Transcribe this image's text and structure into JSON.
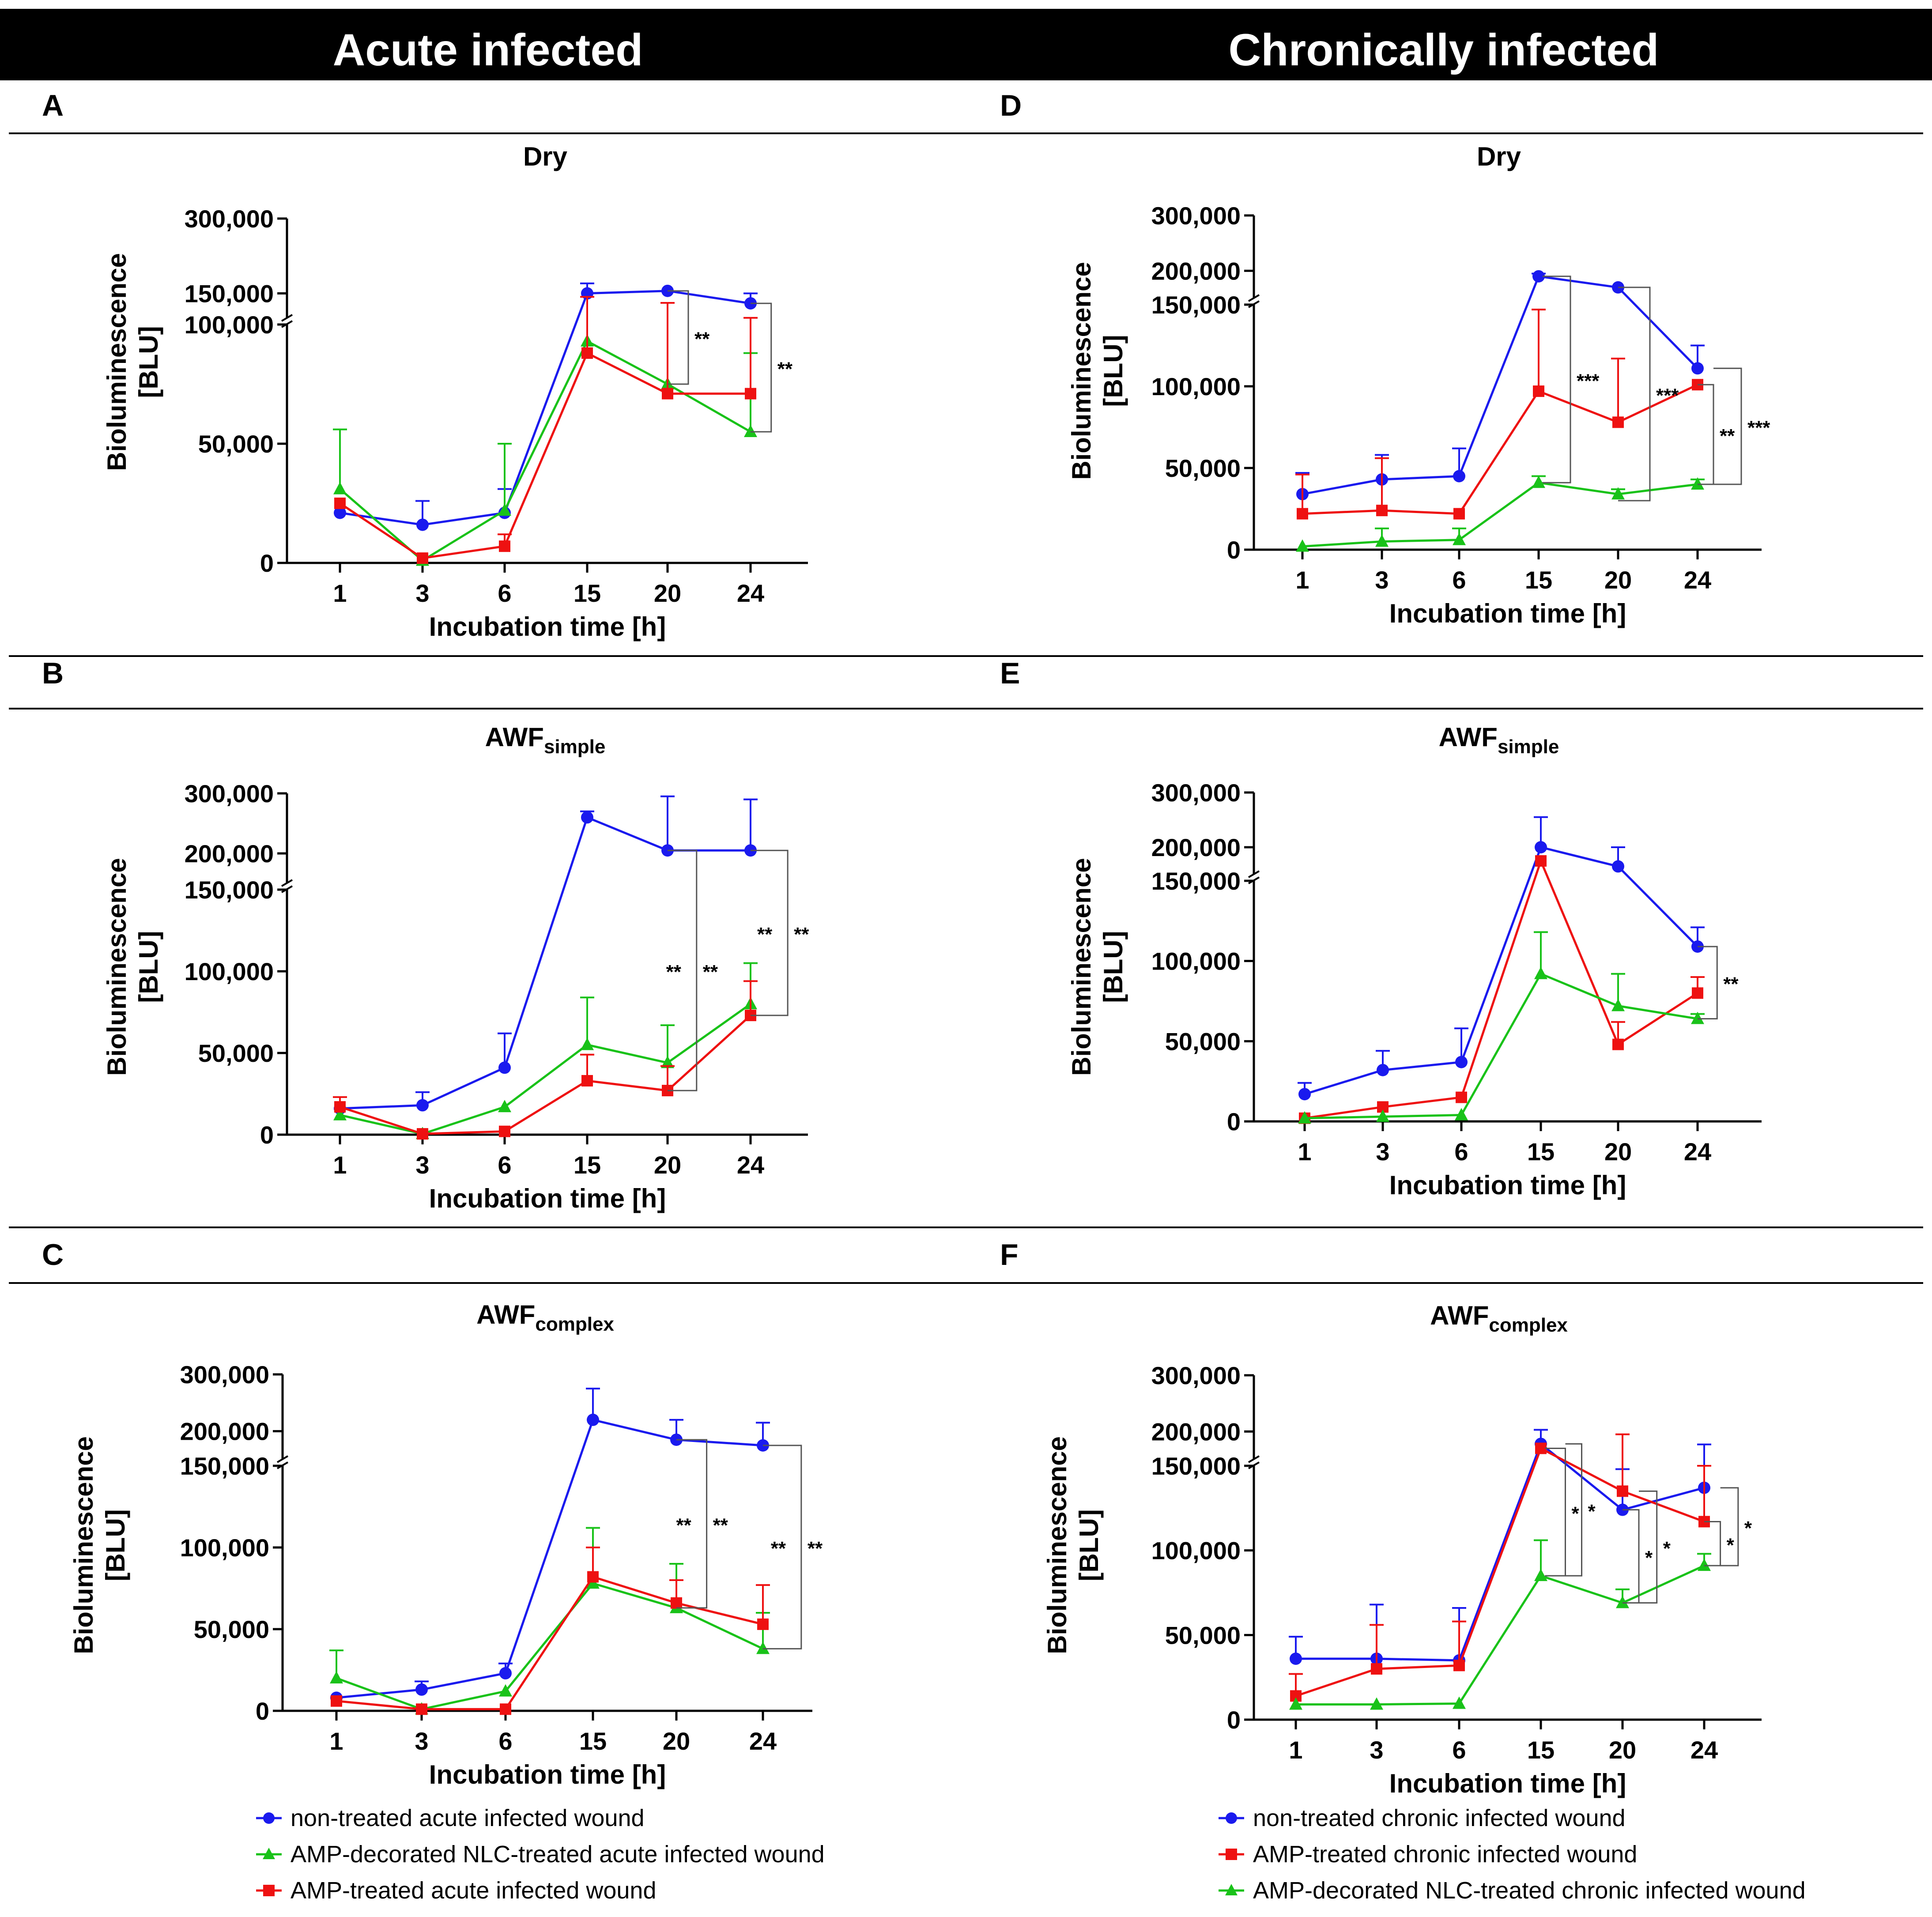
{
  "header": {
    "left_title": "Acute infected",
    "right_title": "Chronically infected",
    "bar_color": "#000000",
    "text_color": "#ffffff"
  },
  "axis_labels": {
    "xlabel": "Incubation time [h]",
    "ylabel_line1": "Bioluminescence",
    "ylabel_line2": "[BLU]"
  },
  "colors": {
    "blue": "#1a1aee",
    "green": "#19c219",
    "red": "#ee1111"
  },
  "legend_acute": [
    {
      "label": "non-treated acute infected wound",
      "color": "#1a1aee",
      "marker": "circle"
    },
    {
      "label": "AMP-decorated NLC-treated acute infected wound",
      "color": "#19c219",
      "marker": "triangle"
    },
    {
      "label": "AMP-treated acute infected wound",
      "color": "#ee1111",
      "marker": "square"
    }
  ],
  "legend_chronic": [
    {
      "label": "non-treated chronic infected wound",
      "color": "#1a1aee",
      "marker": "circle"
    },
    {
      "label": "AMP-treated chronic infected wound",
      "color": "#ee1111",
      "marker": "square"
    },
    {
      "label": "AMP-decorated NLC-treated chronic infected wound",
      "color": "#19c219",
      "marker": "triangle"
    }
  ],
  "chart_data": [
    {
      "id": "A",
      "type": "line",
      "title": "Dry",
      "title_sub": "",
      "categories": [
        "1",
        "3",
        "6",
        "15",
        "20",
        "24"
      ],
      "xlabel": "Incubation time [h]",
      "ylabel": "Bioluminescence [BLU]",
      "axis_break": {
        "lower_range": [
          0,
          100000
        ],
        "upper_range": [
          100000,
          300000
        ]
      },
      "yticks_lower": [
        {
          "v": 0,
          "l": "0"
        },
        {
          "v": 50000,
          "l": "50,000"
        },
        {
          "v": 100000,
          "l": "100,000"
        }
      ],
      "yticks_upper": [
        {
          "v": 150000,
          "l": "150,000"
        },
        {
          "v": 300000,
          "l": "300,000"
        }
      ],
      "series": [
        {
          "name": "non-treated acute infected wound",
          "color": "#1a1aee",
          "marker": "circle",
          "values": [
            21000,
            16000,
            21000,
            150000,
            155000,
            130000
          ],
          "err": [
            0,
            10000,
            10000,
            20000,
            0,
            20000
          ]
        },
        {
          "name": "AMP-decorated NLC-treated acute infected wound",
          "color": "#19c219",
          "marker": "triangle",
          "values": [
            31000,
            1000,
            22000,
            93000,
            75000,
            55000
          ],
          "err": [
            25000,
            0,
            28000,
            0,
            0,
            33000
          ]
        },
        {
          "name": "AMP-treated acute infected wound",
          "color": "#ee1111",
          "marker": "square",
          "values": [
            25000,
            2000,
            7000,
            88000,
            71000,
            71000
          ],
          "err": [
            0,
            0,
            5000,
            55000,
            60000,
            30000
          ]
        }
      ],
      "significance": [
        {
          "x1": 4.0,
          "x2": 4.25,
          "y_top": 155000,
          "y_bot": 75000,
          "label": "**"
        },
        {
          "x1": 5.0,
          "x2": 5.25,
          "y_top": 130000,
          "y_bot": 55000,
          "label": "**"
        }
      ]
    },
    {
      "id": "B",
      "type": "line",
      "title": "AWF",
      "title_sub": "simple",
      "categories": [
        "1",
        "3",
        "6",
        "15",
        "20",
        "24"
      ],
      "xlabel": "Incubation time [h]",
      "ylabel": "Bioluminescence [BLU]",
      "axis_break": {
        "lower_range": [
          0,
          150000
        ],
        "upper_range": [
          150000,
          300000
        ]
      },
      "yticks_lower": [
        {
          "v": 0,
          "l": "0"
        },
        {
          "v": 50000,
          "l": "50,000"
        },
        {
          "v": 100000,
          "l": "100,000"
        },
        {
          "v": 150000,
          "l": "150,000"
        }
      ],
      "yticks_upper": [
        {
          "v": 200000,
          "l": "200,000"
        },
        {
          "v": 300000,
          "l": "300,000"
        }
      ],
      "series": [
        {
          "name": "non-treated acute infected wound",
          "color": "#1a1aee",
          "marker": "circle",
          "values": [
            16000,
            18000,
            41000,
            260000,
            205000,
            205000
          ],
          "err": [
            0,
            8000,
            21000,
            10000,
            90000,
            85000
          ]
        },
        {
          "name": "AMP-decorated NLC-treated acute infected wound",
          "color": "#19c219",
          "marker": "triangle",
          "values": [
            12000,
            500,
            17000,
            55000,
            44000,
            80000
          ],
          "err": [
            0,
            0,
            0,
            29000,
            23000,
            25000
          ]
        },
        {
          "name": "AMP-treated acute infected wound",
          "color": "#ee1111",
          "marker": "square",
          "values": [
            17000,
            500,
            2000,
            33000,
            27000,
            73000
          ],
          "err": [
            6000,
            0,
            0,
            16000,
            15000,
            21000
          ]
        }
      ],
      "significance": [
        {
          "x1": 4.0,
          "x2": 4.35,
          "y_top": 205000,
          "y_bot": 27000,
          "label": "**",
          "label2": "**"
        },
        {
          "x1": 5.0,
          "x2": 5.45,
          "y_top": 205000,
          "y_bot": 73000,
          "label": "**",
          "label2": "**"
        }
      ]
    },
    {
      "id": "C",
      "type": "line",
      "title": "AWF",
      "title_sub": "complex",
      "categories": [
        "1",
        "3",
        "6",
        "15",
        "20",
        "24"
      ],
      "xlabel": "Incubation time [h]",
      "ylabel": "Bioluminescence [BLU]",
      "axis_break": {
        "lower_range": [
          0,
          150000
        ],
        "upper_range": [
          150000,
          300000
        ]
      },
      "yticks_lower": [
        {
          "v": 0,
          "l": "0"
        },
        {
          "v": 50000,
          "l": "50,000"
        },
        {
          "v": 100000,
          "l": "100,000"
        },
        {
          "v": 150000,
          "l": "150,000"
        }
      ],
      "yticks_upper": [
        {
          "v": 200000,
          "l": "200,000"
        },
        {
          "v": 300000,
          "l": "300,000"
        }
      ],
      "series": [
        {
          "name": "non-treated acute infected wound",
          "color": "#1a1aee",
          "marker": "circle",
          "values": [
            8000,
            13000,
            23000,
            220000,
            185000,
            175000
          ],
          "err": [
            0,
            5000,
            6000,
            55000,
            35000,
            40000
          ]
        },
        {
          "name": "AMP-decorated NLC-treated acute infected wound",
          "color": "#19c219",
          "marker": "triangle",
          "values": [
            20000,
            1000,
            12000,
            78000,
            63000,
            38000
          ],
          "err": [
            17000,
            0,
            0,
            34000,
            27000,
            22000
          ]
        },
        {
          "name": "AMP-treated acute infected wound",
          "color": "#ee1111",
          "marker": "square",
          "values": [
            6000,
            1000,
            1000,
            82000,
            66000,
            53000
          ],
          "err": [
            0,
            0,
            0,
            18000,
            14000,
            24000
          ]
        }
      ],
      "significance": [
        {
          "x1": 4.0,
          "x2": 4.35,
          "y_top": 185000,
          "y_bot": 63000,
          "label": "**",
          "label2": "**"
        },
        {
          "x1": 5.0,
          "x2": 5.45,
          "y_top": 175000,
          "y_bot": 38000,
          "label": "**",
          "label2": "**"
        }
      ]
    },
    {
      "id": "D",
      "type": "line",
      "title": "Dry",
      "title_sub": "",
      "categories": [
        "1",
        "3",
        "6",
        "15",
        "20",
        "24"
      ],
      "xlabel": "Incubation time [h]",
      "ylabel": "Bioluminescence [BLU]",
      "axis_break": {
        "lower_range": [
          0,
          150000
        ],
        "upper_range": [
          150000,
          300000
        ]
      },
      "yticks_lower": [
        {
          "v": 0,
          "l": "0"
        },
        {
          "v": 50000,
          "l": "50,000"
        },
        {
          "v": 100000,
          "l": "100,000"
        },
        {
          "v": 150000,
          "l": "150,000"
        }
      ],
      "yticks_upper": [
        {
          "v": 200000,
          "l": "200,000"
        },
        {
          "v": 300000,
          "l": "300,000"
        }
      ],
      "series": [
        {
          "name": "non-treated chronic infected wound",
          "color": "#1a1aee",
          "marker": "circle",
          "values": [
            34000,
            43000,
            45000,
            190000,
            170000,
            111000
          ],
          "err": [
            13000,
            15000,
            17000,
            5000,
            0,
            14000
          ]
        },
        {
          "name": "AMP-treated chronic infected wound",
          "color": "#ee1111",
          "marker": "square",
          "values": [
            22000,
            24000,
            22000,
            97000,
            78000,
            101000
          ],
          "err": [
            24000,
            32000,
            0,
            50000,
            39000,
            0
          ]
        },
        {
          "name": "AMP-decorated NLC-treated chronic infected wound",
          "color": "#19c219",
          "marker": "triangle",
          "values": [
            2000,
            5000,
            6000,
            41000,
            34000,
            40000
          ],
          "err": [
            0,
            8000,
            7000,
            4000,
            3000,
            3000
          ]
        }
      ],
      "significance": [
        {
          "x1": 3.05,
          "x2": 3.4,
          "y_top": 190000,
          "y_bot": 41000,
          "label": "***"
        },
        {
          "x1": 4.0,
          "x2": 4.4,
          "y_top": 170000,
          "y_bot": 30000,
          "label": "***"
        },
        {
          "x1": 5.0,
          "x2": 5.2,
          "y_top": 101000,
          "y_bot": 40000,
          "label": "**"
        },
        {
          "x1": 5.2,
          "x2": 5.55,
          "y_top": 111000,
          "y_bot": 40000,
          "label": "***"
        }
      ]
    },
    {
      "id": "E",
      "type": "line",
      "title": "AWF",
      "title_sub": "simple",
      "categories": [
        "1",
        "3",
        "6",
        "15",
        "20",
        "24"
      ],
      "xlabel": "Incubation time [h]",
      "ylabel": "Bioluminescence [BLU]",
      "axis_break": {
        "lower_range": [
          0,
          150000
        ],
        "upper_range": [
          150000,
          300000
        ]
      },
      "yticks_lower": [
        {
          "v": 0,
          "l": "0"
        },
        {
          "v": 50000,
          "l": "50,000"
        },
        {
          "v": 100000,
          "l": "100,000"
        },
        {
          "v": 150000,
          "l": "150,000"
        }
      ],
      "yticks_upper": [
        {
          "v": 200000,
          "l": "200,000"
        },
        {
          "v": 300000,
          "l": "300,000"
        }
      ],
      "series": [
        {
          "name": "non-treated chronic infected wound",
          "color": "#1a1aee",
          "marker": "circle",
          "values": [
            17000,
            32000,
            37000,
            200000,
            165000,
            109000
          ],
          "err": [
            7000,
            12000,
            21000,
            55000,
            35000,
            12000
          ]
        },
        {
          "name": "AMP-treated chronic infected wound",
          "color": "#ee1111",
          "marker": "square",
          "values": [
            2000,
            9000,
            15000,
            175000,
            48000,
            80000
          ],
          "err": [
            0,
            0,
            0,
            0,
            14000,
            10000
          ]
        },
        {
          "name": "AMP-decorated NLC-treated chronic infected wound",
          "color": "#19c219",
          "marker": "triangle",
          "values": [
            2000,
            3000,
            4000,
            92000,
            72000,
            64000
          ],
          "err": [
            0,
            0,
            0,
            26000,
            20000,
            3000
          ]
        }
      ],
      "significance": [
        {
          "x1": 5.0,
          "x2": 5.25,
          "y_top": 109000,
          "y_bot": 64000,
          "label": "**"
        }
      ]
    },
    {
      "id": "F",
      "type": "line",
      "title": "AWF",
      "title_sub": "complex",
      "categories": [
        "1",
        "3",
        "6",
        "15",
        "20",
        "24"
      ],
      "xlabel": "Incubation time [h]",
      "ylabel": "Bioluminescence [BLU]",
      "axis_break": {
        "lower_range": [
          0,
          150000
        ],
        "upper_range": [
          150000,
          300000
        ]
      },
      "yticks_lower": [
        {
          "v": 0,
          "l": "0"
        },
        {
          "v": 50000,
          "l": "50,000"
        },
        {
          "v": 100000,
          "l": "100,000"
        },
        {
          "v": 150000,
          "l": "150,000"
        }
      ],
      "yticks_upper": [
        {
          "v": 200000,
          "l": "200,000"
        },
        {
          "v": 300000,
          "l": "300,000"
        }
      ],
      "series": [
        {
          "name": "non-treated chronic infected wound",
          "color": "#1a1aee",
          "marker": "circle",
          "values": [
            36000,
            36000,
            35000,
            178000,
            124000,
            137000
          ],
          "err": [
            13000,
            32000,
            31000,
            25000,
            24000,
            40000
          ]
        },
        {
          "name": "AMP-treated chronic infected wound",
          "color": "#ee1111",
          "marker": "square",
          "values": [
            14000,
            30000,
            32000,
            170000,
            135000,
            117000
          ],
          "err": [
            13000,
            26000,
            26000,
            0,
            60000,
            33000
          ]
        },
        {
          "name": "AMP-decorated NLC-treated chronic infected wound",
          "color": "#19c219",
          "marker": "triangle",
          "values": [
            9000,
            9000,
            9500,
            85000,
            69000,
            91000
          ],
          "err": [
            0,
            0,
            0,
            21000,
            8000,
            7000
          ]
        }
      ],
      "significance": [
        {
          "x1": 3.05,
          "x2": 3.3,
          "y_top": 170000,
          "y_bot": 85000,
          "label": "*"
        },
        {
          "x1": 3.3,
          "x2": 3.5,
          "y_top": 178000,
          "y_bot": 85000,
          "label": "*"
        },
        {
          "x1": 4.0,
          "x2": 4.2,
          "y_top": 124000,
          "y_bot": 69000,
          "label": "*"
        },
        {
          "x1": 4.2,
          "x2": 4.42,
          "y_top": 135000,
          "y_bot": 69000,
          "label": "*"
        },
        {
          "x1": 5.0,
          "x2": 5.2,
          "y_top": 117000,
          "y_bot": 91000,
          "label": "*"
        },
        {
          "x1": 5.2,
          "x2": 5.42,
          "y_top": 137000,
          "y_bot": 91000,
          "label": "*"
        }
      ]
    }
  ]
}
